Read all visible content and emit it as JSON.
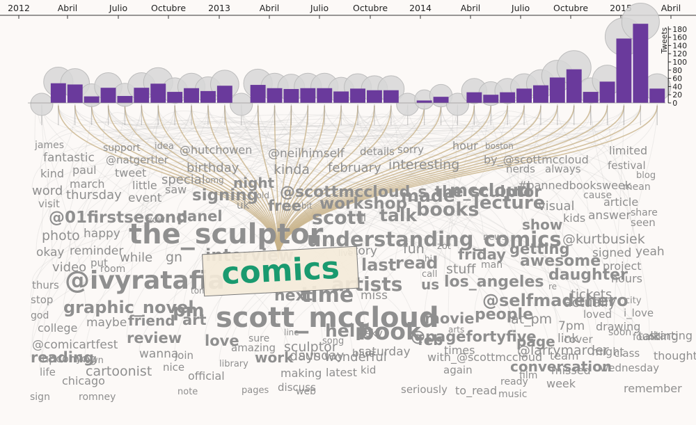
{
  "chart_data": {
    "type": "bar",
    "timeline_labels": [
      "2012",
      "Abril",
      "Julio",
      "Octubre",
      "2013",
      "Abril",
      "Julio",
      "Octubre",
      "2014",
      "Abril",
      "Julio",
      "Octubre",
      "2015",
      "Abril"
    ],
    "ylabel": "Tweets",
    "yticks": [
      0,
      20,
      40,
      60,
      80,
      100,
      120,
      140,
      160,
      180
    ],
    "ylim": [
      0,
      195
    ],
    "bar_color": "#6a3a9c",
    "circle_color": "#d7d7d7",
    "link_color": "#c8b38a",
    "focus_color": "#1a9a6f",
    "values": [
      0,
      48,
      45,
      16,
      37,
      17,
      37,
      47,
      27,
      36,
      29,
      42,
      0,
      44,
      36,
      34,
      36,
      36,
      28,
      35,
      31,
      31,
      0,
      6,
      15,
      0,
      26,
      20,
      26,
      35,
      43,
      62,
      82,
      27,
      52,
      157,
      193,
      35
    ],
    "focus_word": "comics",
    "words": [
      {
        "text": "james",
        "size": 14
      },
      {
        "text": "support",
        "size": 14
      },
      {
        "text": "idea",
        "size": 13
      },
      {
        "text": "fantastic",
        "size": 17
      },
      {
        "text": "@natgertler",
        "size": 15
      },
      {
        "text": "@hutchowen",
        "size": 16
      },
      {
        "text": "@neilhimself",
        "size": 17
      },
      {
        "text": "details",
        "size": 15
      },
      {
        "text": "sorry",
        "size": 15
      },
      {
        "text": "hour",
        "size": 16
      },
      {
        "text": "boston",
        "size": 12
      },
      {
        "text": "limited",
        "size": 16
      },
      {
        "text": "kind",
        "size": 16
      },
      {
        "text": "paul",
        "size": 16
      },
      {
        "text": "tweet",
        "size": 16
      },
      {
        "text": "birthday",
        "size": 18
      },
      {
        "text": "kinda",
        "size": 19
      },
      {
        "text": "february",
        "size": 18
      },
      {
        "text": "interesting",
        "size": 19
      },
      {
        "text": "by_@scottmccloud",
        "size": 16
      },
      {
        "text": "nerds",
        "size": 15
      },
      {
        "text": "always",
        "size": 15
      },
      {
        "text": "festival",
        "size": 15
      },
      {
        "text": "march",
        "size": 16
      },
      {
        "text": "special",
        "size": 18
      },
      {
        "text": "omg",
        "size": 12
      },
      {
        "text": "night",
        "size": 20
      },
      {
        "text": "@scottmccloud_s_the_sculptor",
        "size": 22
      },
      {
        "text": "blog",
        "size": 13
      },
      {
        "text": "word",
        "size": 18
      },
      {
        "text": "little",
        "size": 16
      },
      {
        "text": "saw",
        "size": 16
      },
      {
        "text": "#bannedbooksweek",
        "size": 16
      },
      {
        "text": "mean",
        "size": 14
      },
      {
        "text": "thursday",
        "size": 18
      },
      {
        "text": "event",
        "size": 17
      },
      {
        "text": "signing",
        "size": 23
      },
      {
        "text": "told",
        "size": 12
      },
      {
        "text": "workshop",
        "size": 23
      },
      {
        "text": "made",
        "size": 25
      },
      {
        "text": "mccloud",
        "size": 25
      },
      {
        "text": "cause",
        "size": 14
      },
      {
        "text": "visit",
        "size": 15
      },
      {
        "text": "uk",
        "size": 15
      },
      {
        "text": "free",
        "size": 21
      },
      {
        "text": "bit",
        "size": 12
      },
      {
        "text": "article",
        "size": 16
      },
      {
        "text": "@01firstsecond",
        "size": 23
      },
      {
        "text": "books",
        "size": 27
      },
      {
        "text": "lecture",
        "size": 26
      },
      {
        "text": "visual",
        "size": 18
      },
      {
        "text": "share",
        "size": 14
      },
      {
        "text": "wow",
        "size": 13
      },
      {
        "text": "panel",
        "size": 21
      },
      {
        "text": "scott",
        "size": 27
      },
      {
        "text": "til",
        "size": 15
      },
      {
        "text": "talk",
        "size": 25
      },
      {
        "text": "kids",
        "size": 16
      },
      {
        "text": "answer",
        "size": 17
      },
      {
        "text": "seen",
        "size": 15
      },
      {
        "text": "photo",
        "size": 19
      },
      {
        "text": "happy",
        "size": 17
      },
      {
        "text": "the_sculptor",
        "size": 40
      },
      {
        "text": "understanding_comics",
        "size": 29
      },
      {
        "text": "show",
        "size": 20
      },
      {
        "text": "@kurtbusiek",
        "size": 19
      },
      {
        "text": "okay",
        "size": 17
      },
      {
        "text": "reminder",
        "size": 17
      },
      {
        "text": "news",
        "size": 13
      },
      {
        "text": "interview",
        "size": 24
      },
      {
        "text": "story",
        "size": 17
      },
      {
        "text": "fun",
        "size": 19
      },
      {
        "text": "zot",
        "size": 13
      },
      {
        "text": "getting",
        "size": 21
      },
      {
        "text": "signed",
        "size": 17
      },
      {
        "text": "yeah",
        "size": 17
      },
      {
        "text": "video",
        "size": 18
      },
      {
        "text": "put",
        "size": 15
      },
      {
        "text": "while",
        "size": 18
      },
      {
        "text": "gn",
        "size": 19
      },
      {
        "text": "live",
        "size": 12
      },
      {
        "text": "friday",
        "size": 21
      },
      {
        "text": "awesome",
        "size": 22
      },
      {
        "text": "project",
        "size": 16
      },
      {
        "text": "room",
        "size": 14
      },
      {
        "text": "last",
        "size": 24
      },
      {
        "text": "read",
        "size": 24
      },
      {
        "text": "hi",
        "size": 12
      },
      {
        "text": "stuff",
        "size": 19
      },
      {
        "text": "man",
        "size": 14
      },
      {
        "text": "daughter",
        "size": 22
      },
      {
        "text": "hours",
        "size": 16
      },
      {
        "text": "thurs",
        "size": 15
      },
      {
        "text": "@ivyratafia",
        "size": 36
      },
      {
        "text": "artists",
        "size": 28
      },
      {
        "text": "us",
        "size": 20
      },
      {
        "text": "los_angeles",
        "size": 22
      },
      {
        "text": "call",
        "size": 13
      },
      {
        "text": "re",
        "size": 12
      },
      {
        "text": "tickets",
        "size": 18
      },
      {
        "text": "stop",
        "size": 15
      },
      {
        "text": "tom",
        "size": 12
      },
      {
        "text": "time",
        "size": 30
      },
      {
        "text": "city",
        "size": 13
      },
      {
        "text": "god",
        "size": 14
      },
      {
        "text": "graphic_novel",
        "size": 24
      },
      {
        "text": "pm",
        "size": 26
      },
      {
        "text": "next",
        "size": 22
      },
      {
        "text": "miss",
        "size": 17
      },
      {
        "text": "@selfmadehero",
        "size": 24
      },
      {
        "text": "actually",
        "size": 19
      },
      {
        "text": "loved",
        "size": 15
      },
      {
        "text": "i_love",
        "size": 15
      },
      {
        "text": "college",
        "size": 16
      },
      {
        "text": "maybe",
        "size": 17
      },
      {
        "text": "friend",
        "size": 20
      },
      {
        "text": "art",
        "size": 21
      },
      {
        "text": "scott_mccloud",
        "size": 40
      },
      {
        "text": "movie",
        "size": 21
      },
      {
        "text": "people",
        "size": 22
      },
      {
        "text": "at_pm",
        "size": 19
      },
      {
        "text": "7pm",
        "size": 17
      },
      {
        "text": "drawing",
        "size": 16
      },
      {
        "text": "arts",
        "size": 12
      },
      {
        "text": "book",
        "size": 33
      },
      {
        "text": "@pagefortyfive",
        "size": 21
      },
      {
        "text": "@comicartfest",
        "size": 17
      },
      {
        "text": "review",
        "size": 21
      },
      {
        "text": "love",
        "size": 21
      },
      {
        "text": "sure",
        "size": 14
      },
      {
        "text": "line",
        "size": 12
      },
      {
        "text": "help",
        "size": 25
      },
      {
        "text": "sky",
        "size": 15
      },
      {
        "text": "cover",
        "size": 15
      },
      {
        "text": "soon",
        "size": 14
      },
      {
        "text": "found",
        "size": 14
      },
      {
        "text": "talking",
        "size": 17
      },
      {
        "text": "reading",
        "size": 21
      },
      {
        "text": "nyc",
        "size": 13
      },
      {
        "text": "wanna",
        "size": 17
      },
      {
        "text": "amazing",
        "size": 15
      },
      {
        "text": "sculptor",
        "size": 19
      },
      {
        "text": "song",
        "size": 13
      },
      {
        "text": "feb",
        "size": 20
      },
      {
        "text": "page",
        "size": 20
      },
      {
        "text": "link",
        "size": 17
      },
      {
        "text": "starting",
        "size": 16
      },
      {
        "text": "upcoming",
        "size": 16
      },
      {
        "text": "own",
        "size": 13
      },
      {
        "text": "join",
        "size": 15
      },
      {
        "text": "library",
        "size": 13
      },
      {
        "text": "work",
        "size": 20
      },
      {
        "text": "days",
        "size": 19
      },
      {
        "text": "blue",
        "size": 15
      },
      {
        "text": "@larrymarder",
        "size": 19
      },
      {
        "text": "team",
        "size": 16
      },
      {
        "text": "might",
        "size": 16
      },
      {
        "text": "class",
        "size": 15
      },
      {
        "text": "thought",
        "size": 16
      },
      {
        "text": "life",
        "size": 15
      },
      {
        "text": "cartoonist",
        "size": 19
      },
      {
        "text": "nice",
        "size": 15
      },
      {
        "text": "sunday",
        "size": 18
      },
      {
        "text": "wonderful",
        "size": 18
      },
      {
        "text": "saturday",
        "size": 17
      },
      {
        "text": "with_@scottmccloud",
        "size": 16
      },
      {
        "text": "times",
        "size": 16
      },
      {
        "text": "conversation",
        "size": 20
      },
      {
        "text": "missed",
        "size": 16
      },
      {
        "text": "wednesday",
        "size": 15
      },
      {
        "text": "chicago",
        "size": 16
      },
      {
        "text": "official",
        "size": 16
      },
      {
        "text": "making",
        "size": 16
      },
      {
        "text": "latest",
        "size": 16
      },
      {
        "text": "kid",
        "size": 15
      },
      {
        "text": "again",
        "size": 15
      },
      {
        "text": "film",
        "size": 14
      },
      {
        "text": "week",
        "size": 16
      },
      {
        "text": "remember",
        "size": 16
      },
      {
        "text": "sign",
        "size": 14
      },
      {
        "text": "romney",
        "size": 14
      },
      {
        "text": "note",
        "size": 13
      },
      {
        "text": "pages",
        "size": 13
      },
      {
        "text": "discuss",
        "size": 15
      },
      {
        "text": "web",
        "size": 14
      },
      {
        "text": "seriously",
        "size": 15
      },
      {
        "text": "to_read",
        "size": 16
      },
      {
        "text": "ready",
        "size": 14
      },
      {
        "text": "music",
        "size": 14
      }
    ]
  }
}
